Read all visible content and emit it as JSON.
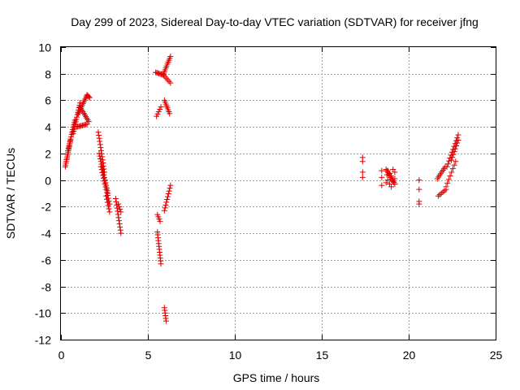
{
  "chart_data": {
    "type": "scatter",
    "title": "Day 299 of 2023, Sidereal Day-to-day VTEC variation (SDTVAR) for receiver jfng",
    "xlabel": "GPS time / hours",
    "ylabel": "SDTVAR / TECUs",
    "xlim": [
      0,
      25
    ],
    "ylim": [
      -12,
      10
    ],
    "xticks": [
      0,
      5,
      10,
      15,
      20,
      25
    ],
    "yticks": [
      -12,
      -10,
      -8,
      -6,
      -4,
      -2,
      0,
      2,
      4,
      6,
      8,
      10
    ],
    "grid": true,
    "marker": "+",
    "color": "#e00000",
    "series": [
      {
        "name": "sdtvar",
        "segments": [
          {
            "from": [
              0.25,
              1.0
            ],
            "to": [
              0.55,
              3.0
            ],
            "n": 16
          },
          {
            "from": [
              0.4,
              2.2
            ],
            "to": [
              0.8,
              4.5
            ],
            "n": 14
          },
          {
            "from": [
              0.7,
              3.5
            ],
            "to": [
              1.1,
              5.8
            ],
            "n": 14
          },
          {
            "from": [
              1.0,
              5.0
            ],
            "to": [
              1.5,
              6.4
            ],
            "n": 12
          },
          {
            "from": [
              1.5,
              6.4
            ],
            "to": [
              1.65,
              6.2
            ],
            "n": 4
          },
          {
            "from": [
              1.1,
              5.5
            ],
            "to": [
              1.6,
              4.4
            ],
            "n": 10
          },
          {
            "from": [
              0.9,
              4.0
            ],
            "to": [
              1.5,
              4.2
            ],
            "n": 10
          },
          {
            "from": [
              2.15,
              3.6
            ],
            "to": [
              2.5,
              0.6
            ],
            "n": 14
          },
          {
            "from": [
              2.2,
              2.0
            ],
            "to": [
              2.7,
              -1.0
            ],
            "n": 16
          },
          {
            "from": [
              2.3,
              1.0
            ],
            "to": [
              2.8,
              -1.8
            ],
            "n": 14
          },
          {
            "from": [
              2.6,
              -1.2
            ],
            "to": [
              2.8,
              -2.4
            ],
            "n": 6
          },
          {
            "from": [
              3.15,
              -1.4
            ],
            "to": [
              3.45,
              -4.0
            ],
            "n": 12
          },
          {
            "from": [
              3.3,
              -1.8
            ],
            "to": [
              3.45,
              -2.4
            ],
            "n": 4
          },
          {
            "from": [
              5.45,
              8.1
            ],
            "to": [
              5.9,
              7.9
            ],
            "n": 8
          },
          {
            "from": [
              5.9,
              7.9
            ],
            "to": [
              6.3,
              7.3
            ],
            "n": 6
          },
          {
            "from": [
              5.9,
              8.0
            ],
            "to": [
              6.3,
              9.3
            ],
            "n": 10
          },
          {
            "from": [
              5.5,
              4.8
            ],
            "to": [
              5.75,
              5.5
            ],
            "n": 5
          },
          {
            "from": [
              5.95,
              6.0
            ],
            "to": [
              6.25,
              5.0
            ],
            "n": 8
          },
          {
            "from": [
              5.55,
              -2.6
            ],
            "to": [
              5.7,
              -3.1
            ],
            "n": 4
          },
          {
            "from": [
              5.55,
              -3.9
            ],
            "to": [
              5.75,
              -6.3
            ],
            "n": 12
          },
          {
            "from": [
              5.95,
              -2.3
            ],
            "to": [
              6.3,
              -0.4
            ],
            "n": 10
          },
          {
            "from": [
              5.95,
              -9.6
            ],
            "to": [
              6.05,
              -10.6
            ],
            "n": 6
          }
        ],
        "points": [
          [
            17.35,
            1.7
          ],
          [
            17.35,
            1.4
          ],
          [
            17.35,
            0.6
          ],
          [
            17.35,
            0.2
          ],
          [
            18.45,
            0.7
          ],
          [
            18.45,
            0.2
          ],
          [
            18.45,
            -0.4
          ],
          [
            18.8,
            0.7
          ],
          [
            18.9,
            0.5
          ],
          [
            19.0,
            0.3
          ],
          [
            18.8,
            0.0
          ],
          [
            19.1,
            -0.1
          ],
          [
            18.9,
            -0.3
          ],
          [
            19.2,
            0.6
          ],
          [
            19.1,
            0.8
          ],
          [
            18.7,
            -0.2
          ],
          [
            19.0,
            -0.5
          ],
          [
            18.75,
            0.4
          ],
          [
            19.2,
            0.1
          ],
          [
            20.6,
            0.0
          ],
          [
            20.6,
            -0.7
          ],
          [
            20.6,
            -1.6
          ],
          [
            20.6,
            -1.8
          ]
        ],
        "extra_segments": [
          {
            "from": [
              18.7,
              0.8
            ],
            "to": [
              19.2,
              -0.3
            ],
            "n": 10
          },
          {
            "from": [
              21.65,
              0.1
            ],
            "to": [
              22.1,
              1.0
            ],
            "n": 8
          },
          {
            "from": [
              21.7,
              -1.2
            ],
            "to": [
              22.15,
              -0.7
            ],
            "n": 6
          },
          {
            "from": [
              22.15,
              -0.5
            ],
            "to": [
              22.7,
              1.4
            ],
            "n": 8
          },
          {
            "from": [
              22.2,
              1.0
            ],
            "to": [
              22.85,
              3.4
            ],
            "n": 12
          },
          {
            "from": [
              22.45,
              1.5
            ],
            "to": [
              22.85,
              3.0
            ],
            "n": 8
          }
        ]
      }
    ]
  }
}
